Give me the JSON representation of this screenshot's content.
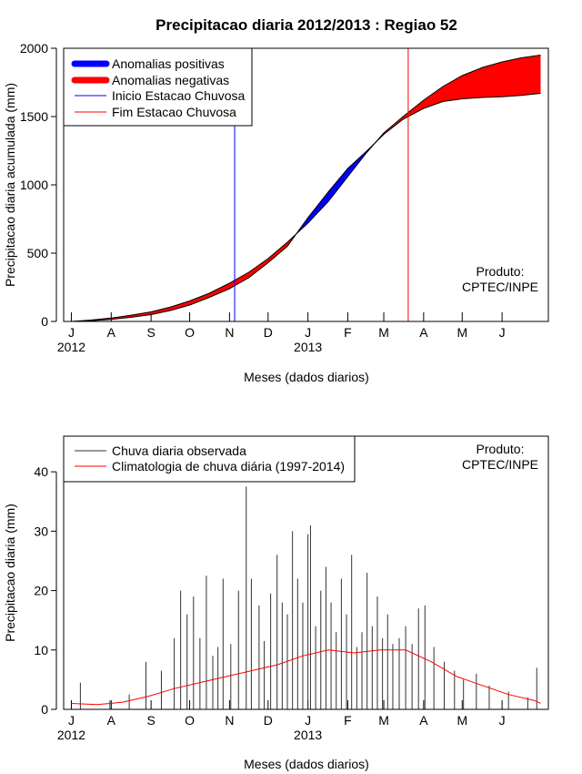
{
  "chart_data": [
    {
      "type": "area",
      "title": "Precipitacao diaria 2012/2013 : Regiao 52",
      "xlabel": "Meses (dados diarios)",
      "ylabel": "Precipitacao diaria acumulada (mm)",
      "ylim": [
        0,
        2000
      ],
      "yticks": [
        0,
        500,
        1000,
        1500,
        2000
      ],
      "xlim_days": [
        -6,
        371
      ],
      "month_ticks": [
        "J",
        "A",
        "S",
        "O",
        "N",
        "D",
        "J",
        "F",
        "M",
        "A",
        "M",
        "J"
      ],
      "month_tick_days": [
        0,
        31,
        62,
        92,
        123,
        153,
        184,
        215,
        243,
        274,
        304,
        335
      ],
      "year_labels": [
        {
          "day": 0,
          "text": "2012"
        },
        {
          "day": 184,
          "text": "2013"
        }
      ],
      "legend": [
        {
          "label": "Anomalias positivas",
          "color": "#0000ff",
          "style": "thick"
        },
        {
          "label": "Anomalias negativas",
          "color": "#ff0000",
          "style": "thick"
        },
        {
          "label": "Inicio Estacao Chuvosa",
          "color": "#0000ff",
          "style": "thin"
        },
        {
          "label": "Fim Estacao Chuvosa",
          "color": "#ff0000",
          "style": "thin"
        }
      ],
      "annotation": [
        "Produto:",
        "CPTEC/INPE"
      ],
      "rainy_season_start_day": 127,
      "rainy_season_end_day": 262,
      "series": [
        {
          "name": "Climatologia acumulada (mm)",
          "days": [
            0,
            15,
            31,
            46,
            62,
            77,
            92,
            107,
            123,
            138,
            153,
            168,
            184,
            200,
            215,
            230,
            243,
            258,
            274,
            289,
            304,
            320,
            335,
            350,
            365
          ],
          "values": [
            0,
            10,
            25,
            45,
            70,
            105,
            150,
            205,
            280,
            360,
            460,
            580,
            720,
            880,
            1060,
            1240,
            1380,
            1500,
            1620,
            1720,
            1800,
            1860,
            1900,
            1930,
            1950
          ]
        },
        {
          "name": "Observado acumulado (mm)",
          "days": [
            0,
            15,
            31,
            46,
            62,
            77,
            92,
            107,
            123,
            138,
            153,
            168,
            184,
            200,
            215,
            230,
            243,
            258,
            274,
            289,
            304,
            320,
            335,
            350,
            365
          ],
          "values": [
            0,
            5,
            15,
            30,
            50,
            80,
            120,
            175,
            240,
            320,
            430,
            550,
            760,
            950,
            1120,
            1250,
            1370,
            1480,
            1560,
            1610,
            1630,
            1640,
            1645,
            1655,
            1670
          ]
        }
      ]
    },
    {
      "type": "bar",
      "xlabel": "Meses (dados diarios)",
      "ylabel": "Precipitacao diaria (mm)",
      "ylim": [
        0,
        46
      ],
      "yticks": [
        0,
        10,
        20,
        30,
        40
      ],
      "xlim_days": [
        -6,
        371
      ],
      "month_ticks": [
        "J",
        "A",
        "S",
        "O",
        "N",
        "D",
        "J",
        "F",
        "M",
        "A",
        "M",
        "J"
      ],
      "month_tick_days": [
        0,
        31,
        62,
        92,
        123,
        153,
        184,
        215,
        243,
        274,
        304,
        335
      ],
      "year_labels": [
        {
          "day": 0,
          "text": "2012"
        },
        {
          "day": 184,
          "text": "2013"
        }
      ],
      "legend": [
        {
          "label": "Chuva diaria observada",
          "color": "#333333",
          "style": "thin"
        },
        {
          "label": "Climatologia de chuva diária (1997-2014)",
          "color": "#ff0000",
          "style": "thin"
        }
      ],
      "annotation": [
        "Produto:",
        "CPTEC/INPE"
      ],
      "series": [
        {
          "name": "Chuva diaria observada",
          "days": [
            7,
            30,
            45,
            58,
            70,
            80,
            85,
            90,
            95,
            100,
            105,
            110,
            114,
            118,
            124,
            130,
            136,
            140,
            146,
            150,
            155,
            160,
            164,
            168,
            172,
            176,
            180,
            184,
            186,
            190,
            194,
            198,
            202,
            206,
            210,
            214,
            218,
            222,
            226,
            230,
            234,
            238,
            242,
            246,
            250,
            255,
            260,
            265,
            270,
            275,
            282,
            290,
            298,
            305,
            315,
            325,
            340,
            355,
            362
          ],
          "values": [
            4.5,
            1.5,
            2.5,
            8,
            6.5,
            12,
            20,
            16,
            19,
            12,
            22.5,
            9,
            10.5,
            22,
            11,
            20,
            37.5,
            22,
            17.5,
            11.5,
            19.5,
            26,
            18,
            16,
            30,
            22,
            18,
            29.5,
            31,
            14,
            20,
            24,
            18,
            13,
            22,
            16,
            26,
            10.5,
            13,
            23,
            14,
            19,
            12,
            16,
            11,
            12,
            14,
            11,
            17,
            17.5,
            10.5,
            8,
            6.5,
            5,
            6,
            4,
            3,
            2,
            7
          ]
        },
        {
          "name": "Climatologia de chuva diária (1997-2014)",
          "days": [
            0,
            20,
            40,
            60,
            80,
            100,
            120,
            140,
            160,
            180,
            200,
            220,
            240,
            260,
            280,
            300,
            320,
            340,
            360,
            365
          ],
          "values": [
            1,
            0.8,
            1.2,
            2.2,
            3.5,
            4.5,
            5.5,
            6.5,
            7.5,
            9,
            10,
            9.5,
            10,
            10,
            8,
            5.5,
            4,
            2.5,
            1.5,
            1
          ]
        }
      ]
    }
  ]
}
